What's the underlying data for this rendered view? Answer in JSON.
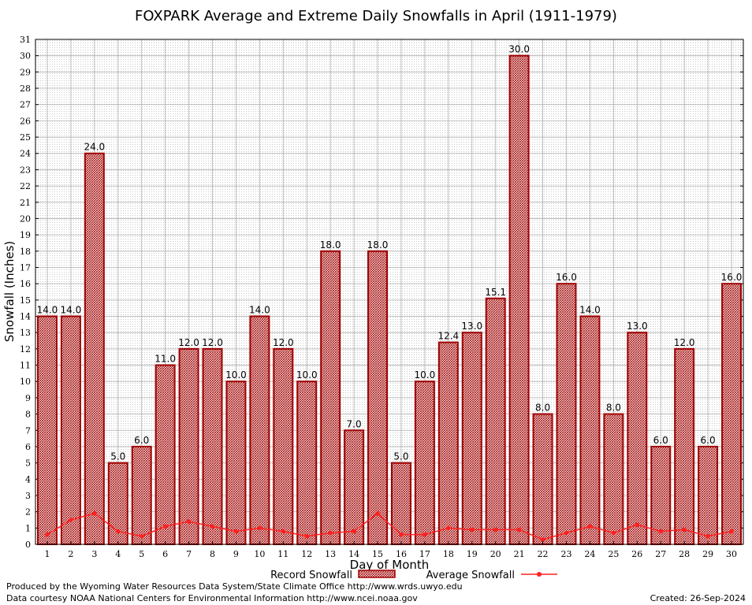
{
  "chart_data": {
    "type": "bar",
    "title": "FOXPARK Average and Extreme Daily Snowfalls in April (1911-1979)",
    "xlabel": "Day of Month",
    "ylabel": "Snowfall (Inches)",
    "ylim": [
      0,
      31
    ],
    "yticks": [
      0,
      1,
      2,
      3,
      4,
      5,
      6,
      7,
      8,
      9,
      10,
      11,
      12,
      13,
      14,
      15,
      16,
      17,
      18,
      19,
      20,
      21,
      22,
      23,
      24,
      25,
      26,
      27,
      28,
      29,
      30,
      31
    ],
    "grid": true,
    "legend_position": "bottom-center",
    "categories": [
      "1",
      "2",
      "3",
      "4",
      "5",
      "6",
      "7",
      "8",
      "9",
      "10",
      "11",
      "12",
      "13",
      "14",
      "15",
      "16",
      "17",
      "18",
      "19",
      "20",
      "21",
      "22",
      "23",
      "24",
      "25",
      "26",
      "27",
      "28",
      "29",
      "30"
    ],
    "series": [
      {
        "name": "Record Snowfall",
        "kind": "bar",
        "color": "#a00000",
        "values": [
          14.0,
          14.0,
          24.0,
          5.0,
          6.0,
          11.0,
          12.0,
          12.0,
          10.0,
          14.0,
          12.0,
          10.0,
          18.0,
          7.0,
          18.0,
          5.0,
          10.0,
          12.4,
          13.0,
          15.1,
          30.0,
          8.0,
          16.0,
          14.0,
          8.0,
          13.0,
          6.0,
          12.0,
          6.0,
          16.0
        ],
        "labels": [
          "14.0",
          "14.0",
          "24.0",
          "5.0",
          "6.0",
          "11.0",
          "12.0",
          "12.0",
          "10.0",
          "14.0",
          "12.0",
          "10.0",
          "18.0",
          "7.0",
          "18.0",
          "5.0",
          "10.0",
          "12.4",
          "13.0",
          "15.1",
          "30.0",
          "8.0",
          "16.0",
          "14.0",
          "8.0",
          "13.0",
          "6.0",
          "12.0",
          "6.0",
          "16.0"
        ]
      },
      {
        "name": "Average Snowfall",
        "kind": "line",
        "color": "#ff2020",
        "values": [
          0.6,
          1.5,
          1.9,
          0.8,
          0.5,
          1.1,
          1.4,
          1.1,
          0.8,
          1.0,
          0.8,
          0.5,
          0.7,
          0.8,
          1.9,
          0.6,
          0.6,
          1.0,
          0.9,
          0.9,
          0.9,
          0.3,
          0.7,
          1.1,
          0.7,
          1.2,
          0.8,
          0.9,
          0.5,
          0.8
        ]
      }
    ]
  },
  "footer": {
    "line1": "Produced by the Wyoming Water Resources Data System/State Climate Office http://www.wrds.uwyo.edu",
    "line2": "Data courtesy NOAA National Centers for Environmental Information http://www.ncei.noaa.gov",
    "created": "Created:  26-Sep-2024"
  }
}
